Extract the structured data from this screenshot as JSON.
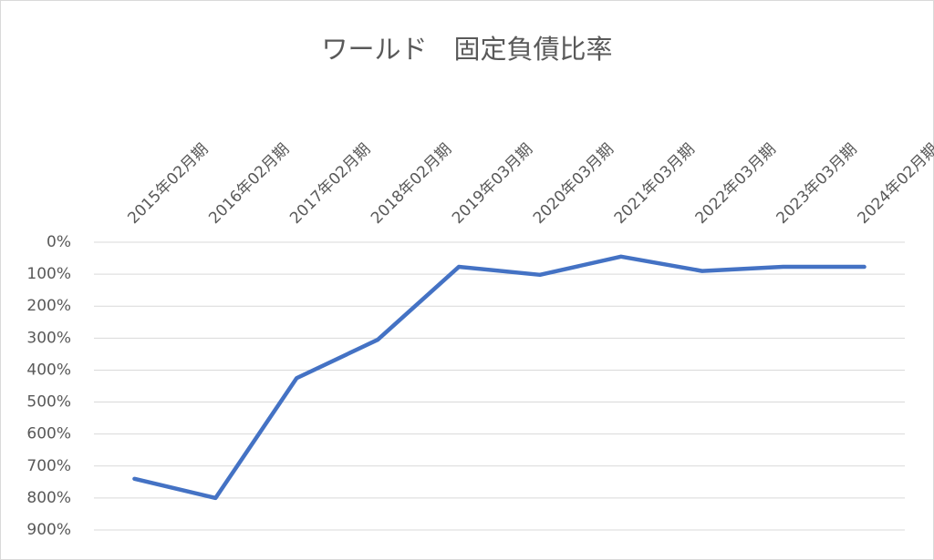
{
  "chart_data": {
    "type": "line",
    "title": "ワールド　固定負債比率",
    "categories": [
      "2015年02月期",
      "2016年02月期",
      "2017年02月期",
      "2018年02月期",
      "2019年03月期",
      "2020年03月期",
      "2021年03月期",
      "2022年03月期",
      "2023年03月期",
      "2024年02月期"
    ],
    "series": [
      {
        "name": "固定負債比率",
        "color": "#4472c4",
        "values": [
          740,
          800,
          425,
          305,
          77,
          102,
          45,
          90,
          77,
          77
        ]
      }
    ],
    "ylim": [
      0,
      900
    ],
    "y_reversed": true,
    "yticks": [
      {
        "value": 0,
        "label": "0%"
      },
      {
        "value": 100,
        "label": "100%"
      },
      {
        "value": 200,
        "label": "200%"
      },
      {
        "value": 300,
        "label": "300%"
      },
      {
        "value": 400,
        "label": "400%"
      },
      {
        "value": 500,
        "label": "500%"
      },
      {
        "value": 600,
        "label": "600%"
      },
      {
        "value": 700,
        "label": "700%"
      },
      {
        "value": 800,
        "label": "800%"
      },
      {
        "value": 900,
        "label": "900%"
      }
    ],
    "grid": true
  }
}
